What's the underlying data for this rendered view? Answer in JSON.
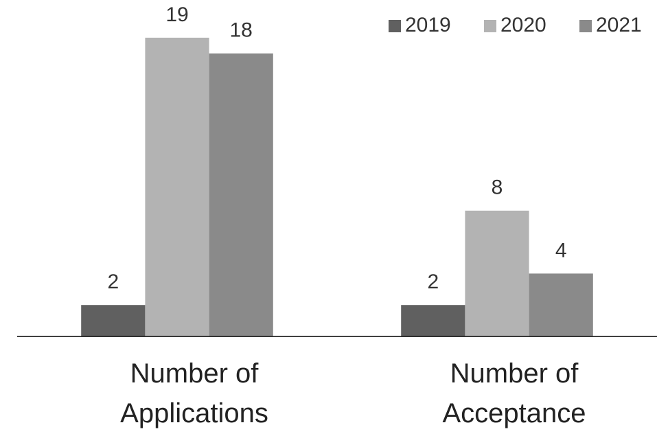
{
  "chart_data": {
    "type": "bar",
    "categories": [
      "Number of Applications",
      "Number of Acceptance"
    ],
    "series": [
      {
        "name": "2019",
        "color": "#606060",
        "values": [
          2,
          2
        ]
      },
      {
        "name": "2020",
        "color": "#b3b3b3",
        "values": [
          19,
          8
        ]
      },
      {
        "name": "2021",
        "color": "#8a8a8a",
        "values": [
          18,
          4
        ]
      }
    ],
    "ylim": [
      0,
      20
    ],
    "legend": "top-right"
  }
}
